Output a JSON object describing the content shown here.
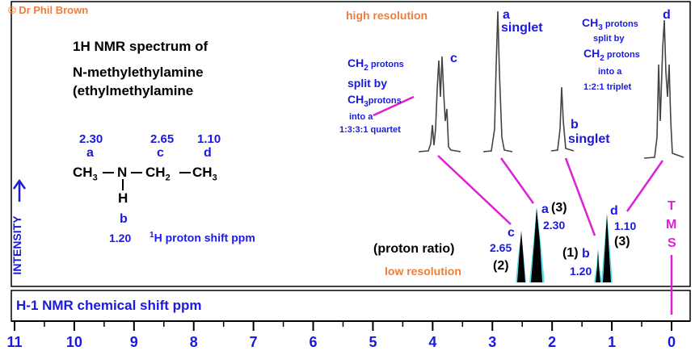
{
  "copyright": "© Dr Phil Brown",
  "title_line1": "1H NMR spectrum of",
  "title_line2": "N-methylethylamine",
  "title_line3": "(ethylmethylamine",
  "structure": {
    "shift_a": "2.30",
    "letter_a": "a",
    "shift_c": "2.65",
    "letter_c": "c",
    "shift_d": "1.10",
    "letter_d": "d",
    "formula_ch3_left": "CH",
    "formula_n": "N",
    "formula_ch2": "CH",
    "formula_ch3_right": "CH",
    "sub3": "3",
    "sub2": "2",
    "formula_h": "H",
    "letter_b": "b",
    "shift_b": "1.20",
    "proton_shift_label": "H proton shift  ppm",
    "proton_shift_sup": "1"
  },
  "high_res_label": "high resolution",
  "low_res_label": "low resolution",
  "proton_ratio_label": "(proton ratio)",
  "hr_c": {
    "l1": "CH",
    "l1sub": "2",
    "l1b": " protons",
    "l2": "split by",
    "l3": "CH",
    "l3sub": "3",
    "l3b": "protons",
    "l4": "into a",
    "l5": "1:3:3:1 quartet",
    "letter": "c"
  },
  "hr_a": {
    "letter": "a",
    "text": "singlet"
  },
  "hr_b": {
    "letter": "b",
    "text": "singlet"
  },
  "hr_d": {
    "l1": "CH",
    "l1sub": "3",
    "l1b": " protons",
    "l2": "split by",
    "l3": "CH",
    "l3sub": "2",
    "l3b": " protons",
    "l4": "into a",
    "l5": "1:2:1 triplet",
    "letter": "d"
  },
  "peak_labels": {
    "c_letter": "c",
    "c_shift": "2.65",
    "c_ratio": "(2)",
    "a_letter": "a",
    "a_ratio": "(3)",
    "a_shift": "2.30",
    "b_ratio": "(1)",
    "b_letter": "b",
    "b_shift": "1.20",
    "d_letter": "d",
    "d_shift": "1.10",
    "d_ratio": "(3)"
  },
  "tms": {
    "t": "T",
    "m": "M",
    "s": "S"
  },
  "intensity_label": "INTENSITY",
  "colors": {
    "blue": "#1a1adf",
    "orange": "#ee7e3c",
    "magenta": "#dd1fd6",
    "cyan": "#5ce1e6"
  },
  "chart_data": {
    "type": "line",
    "xlabel": "H-1 NMR chemical shift ppm",
    "ylabel": "INTENSITY",
    "x_ticks": [
      11,
      10,
      9,
      8,
      7,
      6,
      5,
      4,
      3,
      2,
      1,
      0
    ],
    "xlim": [
      11,
      0
    ],
    "axis_direction": "decreasing to the right",
    "peaks": [
      {
        "label": "c",
        "shift_ppm": 2.65,
        "proton_ratio": 2,
        "multiplicity": "quartet",
        "pattern": "1:3:3:1"
      },
      {
        "label": "a",
        "shift_ppm": 2.3,
        "proton_ratio": 3,
        "multiplicity": "singlet"
      },
      {
        "label": "b",
        "shift_ppm": 1.2,
        "proton_ratio": 1,
        "multiplicity": "singlet"
      },
      {
        "label": "d",
        "shift_ppm": 1.1,
        "proton_ratio": 3,
        "multiplicity": "triplet",
        "pattern": "1:2:1"
      }
    ],
    "reference": {
      "label": "TMS",
      "shift_ppm": 0
    }
  }
}
